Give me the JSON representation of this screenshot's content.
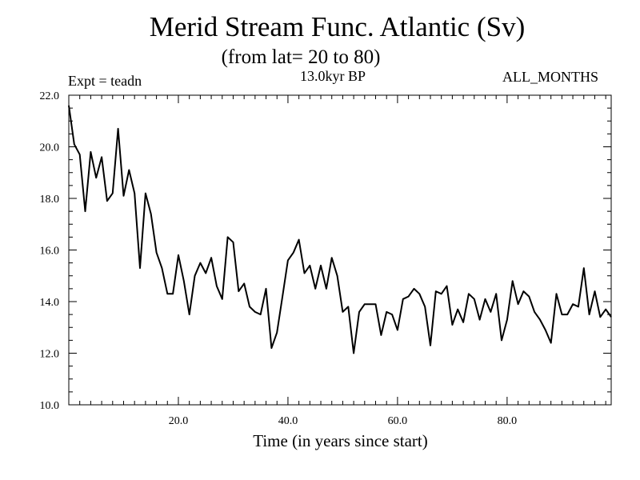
{
  "chart_data": {
    "type": "line",
    "title": "Merid Stream Func. Atlantic (Sv)",
    "subtitle": "(from lat= 20 to 80)",
    "expt_label": "Expt = teadn",
    "era_label": "13.0kyr BP",
    "months_label": "ALL_MONTHS",
    "xlabel": "Time (in years since start)",
    "ylabel": "",
    "xlim": [
      0,
      99
    ],
    "ylim": [
      10.0,
      22.0
    ],
    "x_ticks": [
      20,
      40,
      60,
      80
    ],
    "x_tick_labels": [
      "20.0",
      "40.0",
      "60.0",
      "80.0"
    ],
    "y_ticks": [
      10,
      12,
      14,
      16,
      18,
      20,
      22
    ],
    "y_tick_labels": [
      "10.0",
      "12.0",
      "14.0",
      "16.0",
      "18.0",
      "20.0",
      "22.0"
    ],
    "series": [
      {
        "name": "Merid Stream Func. Atlantic",
        "color": "#000000",
        "x": [
          0,
          1,
          2,
          3,
          4,
          5,
          6,
          7,
          8,
          9,
          10,
          11,
          12,
          13,
          14,
          15,
          16,
          17,
          18,
          19,
          20,
          21,
          22,
          23,
          24,
          25,
          26,
          27,
          28,
          29,
          30,
          31,
          32,
          33,
          34,
          35,
          36,
          37,
          38,
          39,
          40,
          41,
          42,
          43,
          44,
          45,
          46,
          47,
          48,
          49,
          50,
          51,
          52,
          53,
          54,
          55,
          56,
          57,
          58,
          59,
          60,
          61,
          62,
          63,
          64,
          65,
          66,
          67,
          68,
          69,
          70,
          71,
          72,
          73,
          74,
          75,
          76,
          77,
          78,
          79,
          80,
          81,
          82,
          83,
          84,
          85,
          86,
          87,
          88,
          89,
          90,
          91,
          92,
          93,
          94,
          95,
          96,
          97,
          98,
          99
        ],
        "values": [
          21.6,
          20.1,
          19.7,
          17.5,
          19.8,
          18.8,
          19.6,
          17.9,
          18.2,
          20.7,
          18.1,
          19.1,
          18.2,
          15.3,
          18.2,
          17.4,
          15.9,
          15.3,
          14.3,
          14.3,
          15.8,
          14.8,
          13.5,
          15.0,
          15.5,
          15.1,
          15.7,
          14.6,
          14.1,
          16.5,
          16.3,
          14.4,
          14.7,
          13.8,
          13.6,
          13.5,
          14.5,
          12.2,
          12.8,
          14.2,
          15.6,
          15.9,
          16.4,
          15.1,
          15.4,
          14.5,
          15.4,
          14.5,
          15.7,
          15.0,
          13.6,
          13.8,
          12.0,
          13.6,
          13.9,
          13.9,
          13.9,
          12.7,
          13.6,
          13.5,
          12.9,
          14.1,
          14.2,
          14.5,
          14.3,
          13.8,
          12.3,
          14.4,
          14.3,
          14.6,
          13.1,
          13.7,
          13.2,
          14.3,
          14.1,
          13.3,
          14.1,
          13.6,
          14.3,
          12.5,
          13.3,
          14.8,
          13.9,
          14.4,
          14.2,
          13.6,
          13.3,
          12.9,
          12.4,
          14.3,
          13.5,
          13.5,
          13.9,
          13.8,
          15.3,
          13.5,
          14.4,
          13.4,
          13.7,
          13.4
        ]
      }
    ]
  }
}
